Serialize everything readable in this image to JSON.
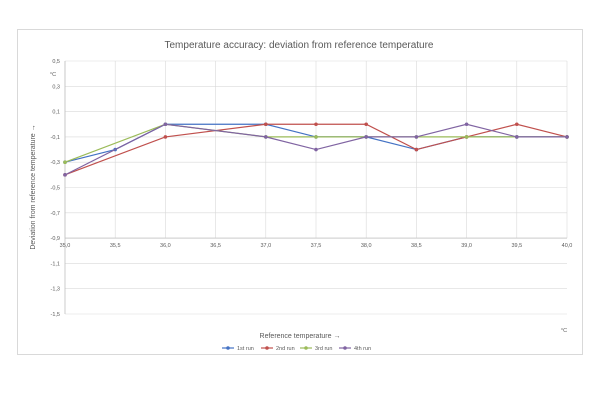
{
  "chart_data": {
    "type": "line",
    "title": "Temperature accuracy: deviation from reference temperature",
    "xlabel": "Reference temperature →",
    "ylabel": "Deviation from reference temperature →",
    "x_unit": "°C",
    "y_unit": "°C",
    "x": [
      35.0,
      35.5,
      36.0,
      36.5,
      37.0,
      37.5,
      38.0,
      38.5,
      39.0,
      39.5,
      40.0
    ],
    "x_tick_labels": [
      "35,0",
      "35,5",
      "36,0",
      "36,5",
      "37,0",
      "37,5",
      "38,0",
      "38,5",
      "39,0",
      "39,5",
      "40,0"
    ],
    "y_tick_values": [
      0.5,
      0.3,
      0.1,
      -0.1,
      -0.3,
      -0.5,
      -0.7,
      -0.9,
      -1.1,
      -1.3,
      -1.5
    ],
    "y_tick_labels": [
      "0,5",
      "0,3",
      "0,1",
      "-0,1",
      "-0,3",
      "-0,5",
      "-0,7",
      "-0,9",
      "-1,1",
      "-1,3",
      "-1,5"
    ],
    "xlim": [
      35.0,
      40.0
    ],
    "ylim": [
      -1.5,
      0.5
    ],
    "x_axis_crosses_y": -0.9,
    "grid": true,
    "legend_position": "bottom",
    "series": [
      {
        "name": "1st run",
        "color": "#4472c4",
        "points": [
          [
            35.0,
            -0.3
          ],
          [
            35.5,
            -0.2
          ],
          [
            36.0,
            0.0
          ],
          [
            37.0,
            0.0
          ],
          [
            37.5,
            -0.1
          ],
          [
            38.0,
            -0.1
          ],
          [
            38.5,
            -0.2
          ],
          [
            39.0,
            -0.1
          ],
          [
            39.5,
            -0.1
          ],
          [
            40.0,
            -0.1
          ]
        ]
      },
      {
        "name": "2nd run",
        "color": "#c0504d",
        "points": [
          [
            35.0,
            -0.4
          ],
          [
            36.0,
            -0.1
          ],
          [
            37.0,
            0.0
          ],
          [
            37.5,
            0.0
          ],
          [
            38.0,
            0.0
          ],
          [
            38.5,
            -0.2
          ],
          [
            39.0,
            -0.1
          ],
          [
            39.5,
            0.0
          ],
          [
            40.0,
            -0.1
          ]
        ]
      },
      {
        "name": "3rd run",
        "color": "#9bbb59",
        "points": [
          [
            35.0,
            -0.3
          ],
          [
            36.0,
            0.0
          ],
          [
            37.0,
            -0.1
          ],
          [
            37.5,
            -0.1
          ],
          [
            38.0,
            -0.1
          ],
          [
            38.5,
            -0.1
          ],
          [
            39.0,
            -0.1
          ],
          [
            39.5,
            -0.1
          ],
          [
            40.0,
            -0.1
          ]
        ]
      },
      {
        "name": "4th run",
        "color": "#8064a2",
        "points": [
          [
            35.0,
            -0.4
          ],
          [
            36.0,
            0.0
          ],
          [
            37.0,
            -0.1
          ],
          [
            37.5,
            -0.2
          ],
          [
            38.0,
            -0.1
          ],
          [
            38.5,
            -0.1
          ],
          [
            39.0,
            0.0
          ],
          [
            39.5,
            -0.1
          ],
          [
            40.0,
            -0.1
          ]
        ]
      }
    ]
  }
}
